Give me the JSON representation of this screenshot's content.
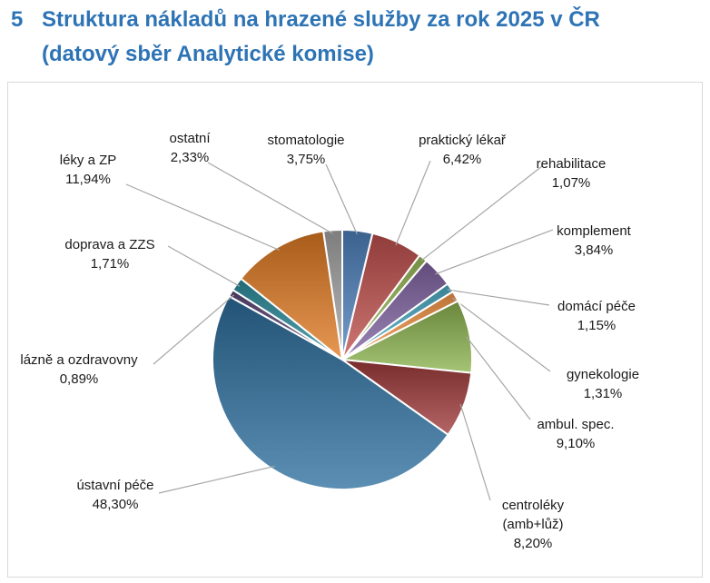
{
  "heading": {
    "number": "5",
    "line1": "Struktura nákladů na hrazené služby za rok 2025 v ČR",
    "line2": "(datový sběr Analytické komise)"
  },
  "chart_data": {
    "type": "pie",
    "start": "top, clockwise",
    "legend": "none (data labels with leader lines)",
    "slices": [
      {
        "label": "stomatologie",
        "value": 3.75,
        "display": "3,75%",
        "color": "#4f81bd"
      },
      {
        "label": "praktický lékař",
        "value": 6.42,
        "display": "6,42%",
        "color": "#c0504d"
      },
      {
        "label": "rehabilitace",
        "value": 1.07,
        "display": "1,07%",
        "color": "#9bbb59"
      },
      {
        "label": "komplement",
        "value": 3.84,
        "display": "3,84%",
        "color": "#8064a2"
      },
      {
        "label": "domácí péče",
        "value": 1.15,
        "display": "1,15%",
        "color": "#4bacc6"
      },
      {
        "label": "gynekologie",
        "value": 1.31,
        "display": "1,31%",
        "color": "#f79646"
      },
      {
        "label": "ambul. spec.",
        "value": 9.1,
        "display": "9,10%",
        "color": "#8cb34e"
      },
      {
        "label": "centroléky\n(amb+lůž)",
        "value": 8.2,
        "display": "8,20%",
        "color": "#a03a3a"
      },
      {
        "label": "ústavní péče",
        "value": 48.3,
        "display": "48,30%",
        "color": "#2d6f9e"
      },
      {
        "label": "lázně a ozdravovny",
        "value": 0.89,
        "display": "0,89%",
        "color": "#5b4676"
      },
      {
        "label": "doprava a ZZS",
        "value": 1.71,
        "display": "1,71%",
        "color": "#2b8c9c"
      },
      {
        "label": "léky a ZP",
        "value": 11.94,
        "display": "11,94%",
        "color": "#e07b22"
      },
      {
        "label": "ostatní",
        "value": 2.33,
        "display": "2,33%",
        "color": "#a6a6a6"
      }
    ]
  }
}
